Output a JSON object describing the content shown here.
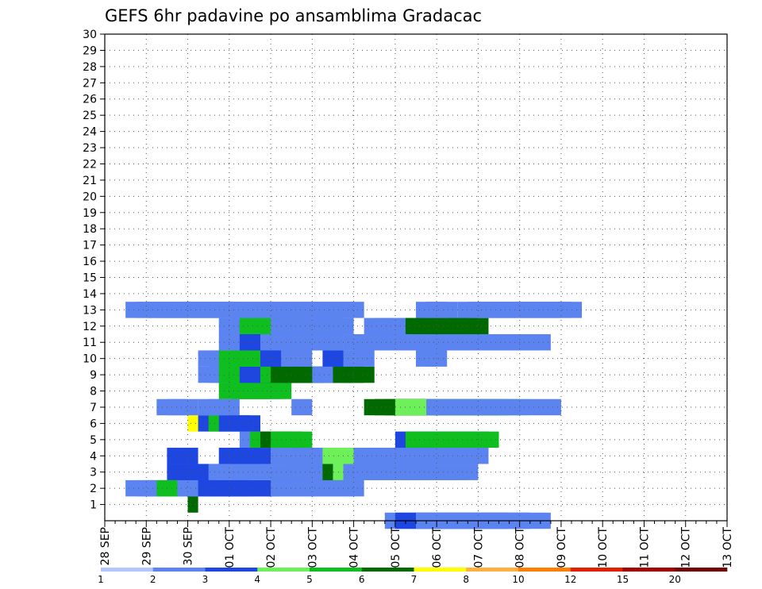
{
  "chart_data": {
    "type": "heatmap",
    "title": "GEFS 6hr padavine po ansamblima Gradacac",
    "x_tick_labels": [
      "28 SEP",
      "29 SEP",
      "30 SEP",
      "01 OCT",
      "02 OCT",
      "03 OCT",
      "04 OCT",
      "05 OCT",
      "06 OCT",
      "07 OCT",
      "08 OCT",
      "09 OCT",
      "10 OCT",
      "11 OCT",
      "12 OCT",
      "13 OCT"
    ],
    "x_unit": "6h steps from 28 SEP 00z",
    "y_tick_labels": [
      "1",
      "2",
      "3",
      "4",
      "5",
      "6",
      "7",
      "8",
      "9",
      "10",
      "11",
      "12",
      "13",
      "14",
      "15",
      "16",
      "17",
      "18",
      "19",
      "20",
      "21",
      "22",
      "23",
      "24",
      "25",
      "26",
      "27",
      "28",
      "29",
      "30"
    ],
    "y_range": [
      0,
      30
    ],
    "grid": true,
    "colorbar": {
      "labels": [
        "1",
        "2",
        "3",
        "4",
        "5",
        "6",
        "7",
        "8",
        "10",
        "12",
        "15",
        "20"
      ],
      "colors": [
        "#b3c6ff",
        "#5b84f0",
        "#1e46e0",
        "#6ef05a",
        "#0fbf1f",
        "#006a00",
        "#ffff00",
        "#ffb040",
        "#ff8000",
        "#e02000",
        "#a00000",
        "#700000"
      ]
    },
    "cells": [
      [
        0,
        27,
        12,
        1
      ],
      [
        0,
        28,
        13,
        2
      ],
      [
        0,
        30,
        13,
        1
      ],
      [
        1,
        8,
        0,
        5
      ],
      [
        1,
        8,
        1,
        5
      ],
      [
        2,
        2,
        3,
        1
      ],
      [
        2,
        3,
        3,
        1
      ],
      [
        2,
        4,
        3,
        1
      ],
      [
        2,
        5,
        4,
        4
      ],
      [
        2,
        6,
        4,
        4
      ],
      [
        2,
        7,
        5,
        1
      ],
      [
        2,
        8,
        6,
        1
      ],
      [
        2,
        9,
        7,
        2
      ],
      [
        2,
        10,
        7,
        2
      ],
      [
        2,
        16,
        8,
        1
      ],
      [
        2,
        17,
        8,
        1
      ],
      [
        3,
        6,
        5,
        2
      ],
      [
        3,
        7,
        5,
        2
      ],
      [
        3,
        8,
        5,
        2
      ],
      [
        3,
        9,
        5,
        2
      ],
      [
        3,
        10,
        4,
        1
      ],
      [
        3,
        11,
        4,
        1
      ],
      [
        3,
        15,
        10,
        1
      ],
      [
        3,
        16,
        10,
        1
      ],
      [
        3,
        17,
        3,
        1
      ],
      [
        3,
        18,
        3,
        1
      ],
      [
        3,
        19,
        11,
        1
      ],
      [
        3,
        20,
        12,
        1
      ],
      [
        3,
        21,
        13,
        5
      ],
      [
        3,
        22,
        13,
        3
      ],
      [
        3,
        23,
        13,
        1
      ],
      [
        4,
        6,
        3,
        2
      ],
      [
        4,
        11,
        3,
        2
      ],
      [
        4,
        12,
        3,
        2
      ],
      [
        4,
        13,
        3,
        2
      ],
      [
        4,
        16,
        8,
        1
      ],
      [
        4,
        18,
        11,
        1
      ],
      [
        4,
        19,
        11,
        1
      ],
      [
        4,
        20,
        11,
        1
      ],
      [
        4,
        21,
        10,
        3
      ],
      [
        4,
        22,
        10,
        3
      ],
      [
        4,
        24,
        8,
        1
      ],
      [
        4,
        25,
        12,
        1
      ],
      [
        5,
        13,
        4,
        1
      ],
      [
        5,
        14,
        4,
        4
      ],
      [
        5,
        15,
        4,
        5
      ],
      [
        5,
        16,
        4,
        4
      ],
      [
        5,
        28,
        9,
        2
      ],
      [
        5,
        29,
        9,
        4
      ],
      [
        6,
        8,
        3,
        6
      ],
      [
        6,
        9,
        3,
        2
      ],
      [
        6,
        10,
        3,
        4
      ],
      [
        6,
        11,
        3,
        2
      ],
      [
        6,
        12,
        3,
        2
      ],
      [
        7,
        5,
        3,
        1
      ],
      [
        7,
        6,
        3,
        1
      ],
      [
        7,
        9,
        3,
        1
      ],
      [
        7,
        10,
        3,
        1
      ],
      [
        7,
        18,
        2,
        1
      ],
      [
        7,
        25,
        13,
        5
      ],
      [
        7,
        26,
        13,
        5
      ],
      [
        7,
        27,
        13,
        5
      ],
      [
        7,
        28,
        13,
        3
      ],
      [
        7,
        31,
        13,
        1
      ],
      [
        8,
        11,
        5,
        4
      ],
      [
        8,
        12,
        5,
        4
      ],
      [
        8,
        13,
        5,
        4
      ],
      [
        9,
        9,
        6,
        1
      ],
      [
        9,
        10,
        6,
        1
      ],
      [
        9,
        11,
        6,
        4
      ],
      [
        9,
        12,
        6,
        4
      ],
      [
        9,
        13,
        6,
        2
      ],
      [
        9,
        14,
        6,
        2
      ],
      [
        9,
        15,
        6,
        4
      ],
      [
        9,
        16,
        6,
        5
      ],
      [
        9,
        17,
        6,
        5
      ],
      [
        9,
        18,
        6,
        5
      ],
      [
        9,
        20,
        2,
        1
      ],
      [
        9,
        21,
        2,
        1
      ],
      [
        9,
        22,
        3,
        5
      ],
      [
        9,
        23,
        3,
        5
      ],
      [
        10,
        9,
        3,
        1
      ],
      [
        10,
        10,
        3,
        1
      ],
      [
        10,
        11,
        3,
        4
      ],
      [
        10,
        12,
        3,
        4
      ],
      [
        10,
        13,
        3,
        4
      ],
      [
        10,
        14,
        3,
        4
      ],
      [
        10,
        15,
        3,
        2
      ],
      [
        10,
        16,
        3,
        2
      ],
      [
        10,
        17,
        3,
        1
      ],
      [
        10,
        21,
        3,
        2
      ],
      [
        10,
        22,
        3,
        2
      ],
      [
        10,
        23,
        3,
        1
      ],
      [
        10,
        30,
        2,
        1
      ],
      [
        10,
        31,
        2,
        1
      ],
      [
        11,
        11,
        4,
        1
      ],
      [
        11,
        12,
        4,
        1
      ],
      [
        11,
        13,
        4,
        2
      ],
      [
        11,
        14,
        4,
        2
      ],
      [
        11,
        15,
        4,
        1
      ],
      [
        11,
        16,
        4,
        1
      ],
      [
        11,
        17,
        4,
        1
      ],
      [
        11,
        18,
        4,
        1
      ],
      [
        11,
        19,
        4,
        1
      ],
      [
        11,
        23,
        9,
        1
      ],
      [
        11,
        24,
        9,
        1
      ],
      [
        11,
        25,
        9,
        1
      ],
      [
        11,
        26,
        9,
        1
      ],
      [
        11,
        27,
        9,
        1
      ],
      [
        11,
        28,
        9,
        1
      ],
      [
        11,
        29,
        9,
        1
      ],
      [
        11,
        30,
        9,
        1
      ],
      [
        11,
        32,
        9,
        1
      ],
      [
        11,
        33,
        9,
        1
      ],
      [
        11,
        34,
        9,
        1
      ],
      [
        12,
        11,
        3,
        1
      ],
      [
        12,
        12,
        3,
        1
      ],
      [
        12,
        13,
        3,
        4
      ],
      [
        12,
        14,
        3,
        4
      ],
      [
        12,
        15,
        3,
        4
      ],
      [
        12,
        16,
        3,
        1
      ],
      [
        12,
        17,
        3,
        1
      ],
      [
        12,
        18,
        3,
        1
      ],
      [
        12,
        19,
        4,
        1
      ],
      [
        12,
        20,
        4,
        1
      ],
      [
        12,
        25,
        5,
        1
      ],
      [
        12,
        26,
        5,
        1
      ],
      [
        12,
        27,
        5,
        1
      ],
      [
        12,
        29,
        5,
        5
      ],
      [
        12,
        30,
        5,
        5
      ],
      [
        12,
        31,
        5,
        5
      ],
      [
        12,
        32,
        5,
        5
      ],
      [
        13,
        2,
        4,
        1
      ],
      [
        13,
        3,
        4,
        1
      ],
      [
        13,
        4,
        4,
        1
      ],
      [
        13,
        5,
        4,
        1
      ],
      [
        13,
        6,
        4,
        1
      ],
      [
        13,
        7,
        4,
        1
      ],
      [
        13,
        8,
        4,
        1
      ],
      [
        13,
        9,
        4,
        1
      ],
      [
        13,
        10,
        4,
        1
      ],
      [
        13,
        11,
        4,
        1
      ],
      [
        13,
        14,
        10,
        1
      ],
      [
        13,
        15,
        10,
        1
      ],
      [
        13,
        30,
        3,
        1
      ],
      [
        13,
        31,
        3,
        1
      ],
      [
        13,
        34,
        3,
        1
      ],
      [
        13,
        35,
        3,
        1
      ],
      [
        13,
        36,
        3,
        1
      ],
      [
        13,
        37,
        3,
        1
      ],
      [
        13,
        38,
        3,
        1
      ],
      [
        13,
        39,
        3,
        1
      ],
      [
        13,
        40,
        3,
        1
      ],
      [
        13,
        41,
        3,
        1
      ],
      [
        13,
        42,
        3,
        1
      ],
      [
        13,
        43,
        3,
        1
      ]
    ]
  }
}
